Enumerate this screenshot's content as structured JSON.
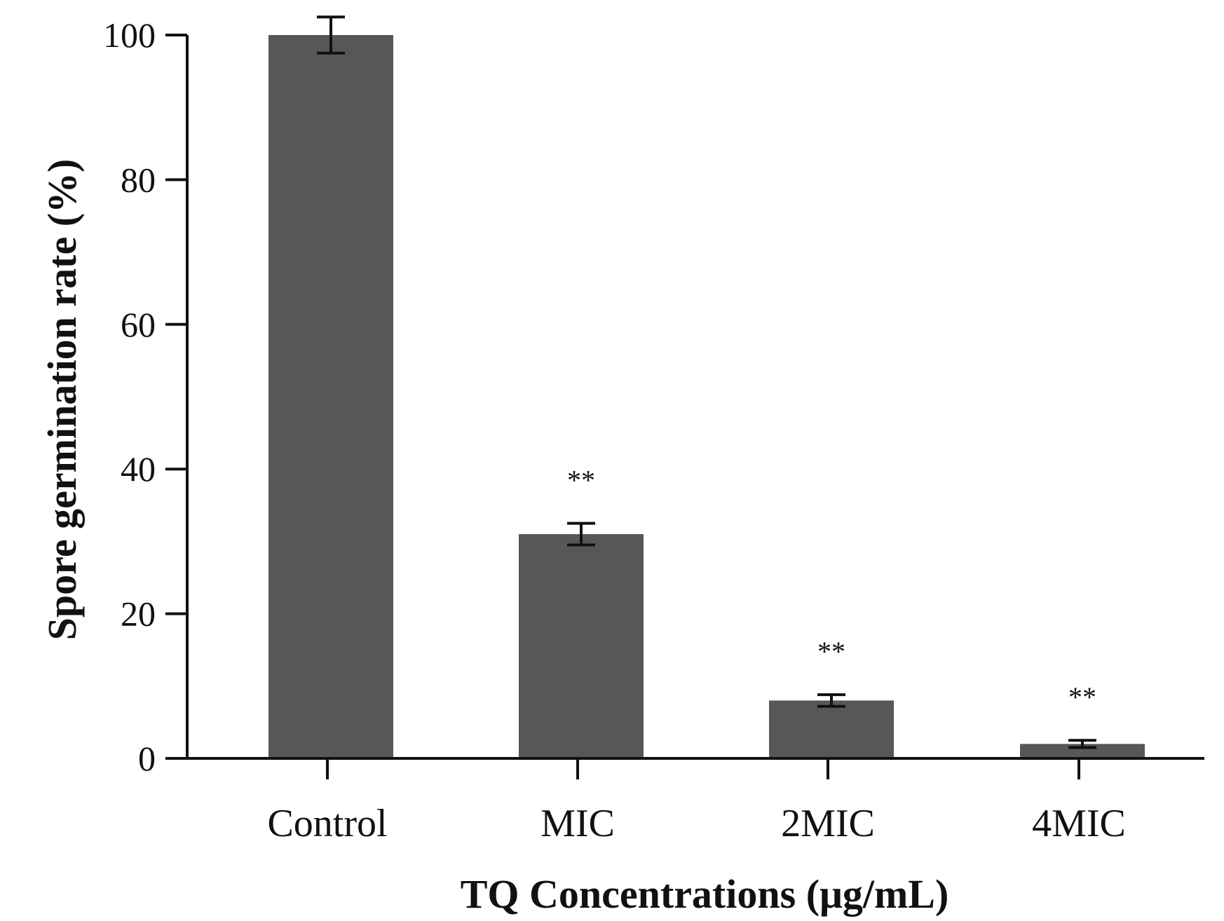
{
  "chart_data": {
    "type": "bar",
    "title": "",
    "xlabel": "TQ Concentrations (μg/mL)",
    "ylabel": "Spore germination rate (%)",
    "categories": [
      "Control",
      "MIC",
      "2MIC",
      "4MIC"
    ],
    "values": [
      100,
      31,
      8,
      2
    ],
    "error": [
      2.5,
      1.5,
      0.8,
      0.5
    ],
    "significance": [
      "",
      "**",
      "**",
      "**"
    ],
    "ylim": [
      0,
      100
    ],
    "yticks": [
      "0",
      "20",
      "40",
      "60",
      "80",
      "100"
    ],
    "grid": false,
    "bar_color": "#575757"
  }
}
